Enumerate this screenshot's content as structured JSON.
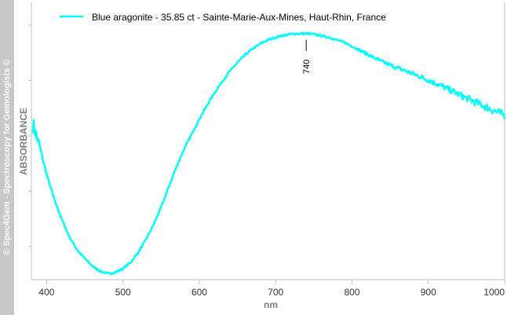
{
  "watermark": "© Spec4Gem - Spectroscopy for Gemologists ©",
  "colors": {
    "series": "#00FFFF",
    "axis": "#C0C0C0",
    "side_strip": "#C8C8C8"
  },
  "chart_data": {
    "type": "line",
    "xlabel": "nm",
    "ylabel": "ABSORBANCE",
    "xlim": [
      380,
      1000
    ],
    "ylim": [
      0,
      1
    ],
    "x_ticks": [
      400,
      500,
      600,
      700,
      800,
      900,
      1000
    ],
    "y_tick_labels_shown": false,
    "grid": false,
    "legend_position": "top-left",
    "annotations": [
      {
        "x": 740,
        "label": "740"
      }
    ],
    "series": [
      {
        "name": "Blue aragonite - 35.85 ct - Sainte-Marie-Aux-Mines, Haut-Rhin, France",
        "x": [
          382,
          390,
          400,
          410,
          420,
          430,
          440,
          450,
          460,
          470,
          480,
          490,
          500,
          510,
          520,
          530,
          540,
          550,
          560,
          570,
          580,
          590,
          600,
          610,
          620,
          630,
          640,
          650,
          660,
          670,
          680,
          690,
          700,
          710,
          720,
          730,
          740,
          750,
          760,
          770,
          780,
          790,
          800,
          810,
          820,
          830,
          840,
          850,
          860,
          870,
          880,
          890,
          900,
          910,
          920,
          930,
          940,
          950,
          960,
          970,
          980,
          990,
          1000
        ],
        "y": [
          0.6,
          0.52,
          0.4,
          0.3,
          0.22,
          0.15,
          0.1,
          0.065,
          0.035,
          0.015,
          0.005,
          0.01,
          0.025,
          0.05,
          0.09,
          0.14,
          0.2,
          0.27,
          0.35,
          0.43,
          0.5,
          0.56,
          0.62,
          0.675,
          0.725,
          0.77,
          0.81,
          0.845,
          0.875,
          0.9,
          0.92,
          0.935,
          0.945,
          0.953,
          0.958,
          0.96,
          0.96,
          0.957,
          0.952,
          0.945,
          0.935,
          0.925,
          0.91,
          0.895,
          0.878,
          0.862,
          0.848,
          0.835,
          0.823,
          0.812,
          0.8,
          0.788,
          0.775,
          0.762,
          0.748,
          0.733,
          0.718,
          0.703,
          0.69,
          0.676,
          0.662,
          0.648,
          0.635
        ]
      }
    ]
  }
}
